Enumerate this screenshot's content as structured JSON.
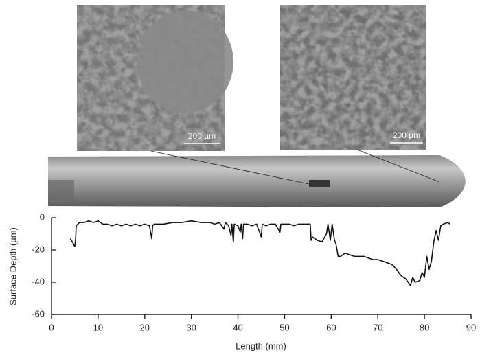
{
  "chart_data": {
    "type": "line",
    "annotations": [
      "200 µm",
      "200 µm"
    ],
    "x_label": "Length (mm)",
    "y_label": "Surface Depth (µm)",
    "xlim": [
      0,
      90
    ],
    "xticks": [
      0,
      10,
      20,
      30,
      40,
      50,
      60,
      70,
      80,
      90
    ],
    "ylim": [
      -60,
      0
    ],
    "yticks": [
      -60,
      -40,
      -20,
      0
    ],
    "color": "#111111",
    "x": [
      4,
      4.5,
      5,
      5.2,
      5.3,
      6,
      7,
      8,
      9,
      10,
      11,
      12,
      13,
      14,
      15,
      16,
      17,
      18,
      19,
      20,
      21,
      21.5,
      21.7,
      22,
      24,
      26,
      28,
      30,
      32,
      34,
      35,
      36,
      37,
      37.3,
      38,
      38.5,
      38.7,
      39,
      39.2,
      40,
      40.5,
      40.7,
      41,
      41.2,
      42,
      43,
      44,
      45,
      45.2,
      46,
      47,
      48,
      49,
      49.2,
      50,
      51,
      52,
      53,
      54,
      55,
      55.5,
      55.7,
      56,
      57,
      58,
      59,
      59.3,
      59.8,
      60.2,
      60.7,
      61,
      61.5,
      62,
      63,
      64,
      65,
      66,
      67,
      68,
      69,
      70,
      71,
      72,
      73,
      74,
      75,
      76,
      76.5,
      77,
      77.5,
      78,
      79,
      79.5,
      80,
      80.5,
      81,
      81.5,
      82,
      82.5,
      83,
      83.5,
      84,
      85,
      85.5
    ],
    "values": [
      -13,
      -15,
      -18,
      -12,
      -5,
      -3,
      -3,
      -2,
      -3,
      -2,
      -4,
      -4,
      -5,
      -4,
      -5,
      -4,
      -5,
      -4,
      -5,
      -4,
      -5,
      -13,
      -5,
      -4,
      -4,
      -3,
      -3,
      -2,
      -3,
      -3,
      -4,
      -3,
      -7,
      -3,
      -5,
      -11,
      -4,
      -15,
      -4,
      -5,
      -9,
      -4,
      -13,
      -4,
      -4,
      -5,
      -4,
      -12,
      -4,
      -5,
      -4,
      -4,
      -9,
      -4,
      -4,
      -4,
      -5,
      -4,
      -4,
      -4,
      -4,
      -14,
      -12,
      -14,
      -15,
      -10,
      -4,
      -14,
      -4,
      -14,
      -16,
      -24,
      -24,
      -22,
      -23,
      -24,
      -24,
      -24,
      -25,
      -26,
      -26,
      -27,
      -28,
      -29,
      -32,
      -36,
      -38,
      -40,
      -42,
      -37,
      -40,
      -39,
      -34,
      -37,
      -24,
      -32,
      -27,
      -15,
      -8,
      -14,
      -5,
      -4,
      -3,
      -4
    ]
  }
}
